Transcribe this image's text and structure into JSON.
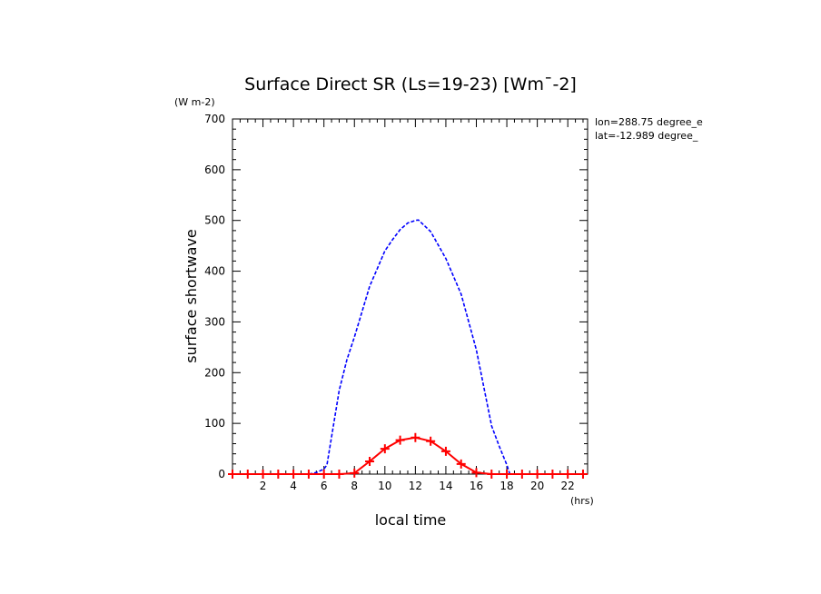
{
  "chart_data": {
    "type": "line",
    "title": "Surface Direct SR (Ls=19-23) [Wm¯-2]",
    "xlabel": "local time",
    "ylabel": "surface shortwave",
    "xunits": "(hrs)",
    "yunits": "(W m-2)",
    "xlim": [
      0,
      23.3
    ],
    "ylim": [
      0,
      700
    ],
    "xticks": [
      2,
      4,
      6,
      8,
      10,
      12,
      14,
      16,
      18,
      20,
      22
    ],
    "yticks": [
      0,
      100,
      200,
      300,
      400,
      500,
      600,
      700
    ],
    "annotations": [
      "lon=288.75 degree_e",
      "lat=-12.989 degree_"
    ],
    "grid": false,
    "series": [
      {
        "color": "#0000ff",
        "style": "dashed",
        "marker": "none",
        "x": [
          0,
          1,
          2,
          3,
          4,
          5,
          5.5,
          6,
          6.2,
          7,
          7.5,
          8,
          8.5,
          9,
          9.5,
          10,
          10.5,
          11,
          11.5,
          12,
          12.2,
          13,
          14,
          15,
          16,
          17,
          17.5,
          18,
          18.2,
          19,
          20,
          21,
          22,
          23
        ],
        "y": [
          0,
          0,
          0,
          0,
          0,
          0,
          3,
          10,
          18,
          165,
          225,
          270,
          320,
          370,
          405,
          440,
          462,
          482,
          495,
          500,
          501,
          478,
          425,
          355,
          245,
          95,
          55,
          18,
          0,
          0,
          0,
          0,
          0,
          0
        ]
      },
      {
        "color": "#ff0000",
        "style": "solid",
        "marker": "plus",
        "x": [
          0,
          1,
          2,
          3,
          4,
          5,
          6,
          7,
          8,
          9,
          10,
          11,
          12,
          13,
          14,
          15,
          16,
          17,
          18,
          19,
          20,
          21,
          22,
          23
        ],
        "y": [
          0,
          0,
          0,
          0,
          0,
          0,
          0,
          0,
          2,
          25,
          50,
          67,
          72,
          65,
          45,
          20,
          3,
          0,
          0,
          0,
          0,
          0,
          0,
          0
        ]
      }
    ]
  }
}
